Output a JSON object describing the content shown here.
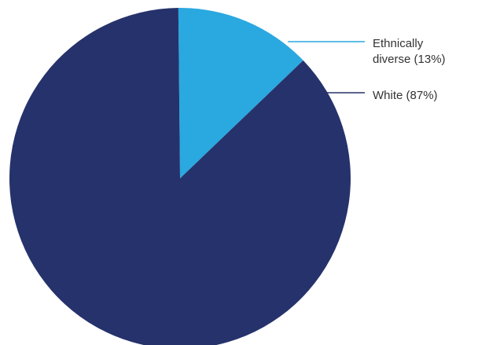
{
  "chart_data": {
    "type": "pie",
    "title": "",
    "start": "top",
    "direction": "clockwise",
    "slices": [
      {
        "label_lines": [
          "Ethnically",
          "diverse (13%)"
        ],
        "value": 13,
        "color": "#2aa8e0"
      },
      {
        "label_lines": [
          "White (87%)"
        ],
        "value": 87,
        "color": "#26326b"
      }
    ]
  }
}
